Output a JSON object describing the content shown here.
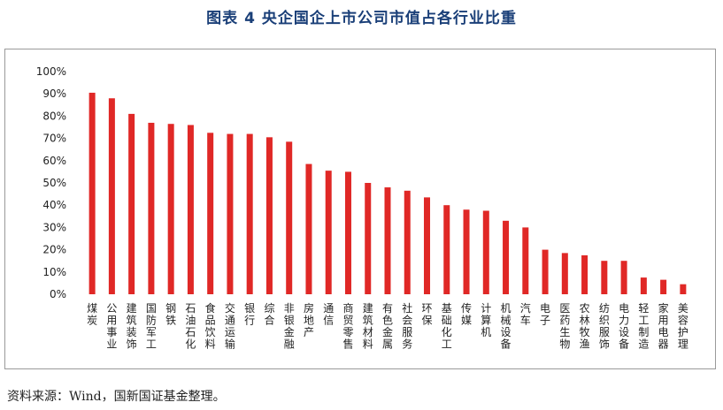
{
  "title": "图表 4  央企国企上市公司市值占各行业比重",
  "source": "资料来源：Wind，国新国证基金整理。",
  "colors": {
    "bar": "#e02826",
    "title": "#1a3f78"
  },
  "chart_data": {
    "type": "bar",
    "title": "图表 4  央企国企上市公司市值占各行业比重",
    "xlabel": "",
    "ylabel": "",
    "ylim": [
      0,
      100
    ],
    "yticks": [
      "0%",
      "10%",
      "20%",
      "30%",
      "40%",
      "50%",
      "60%",
      "70%",
      "80%",
      "90%",
      "100%"
    ],
    "grid": false,
    "categories": [
      "煤炭",
      "公用事业",
      "建筑装饰",
      "国防军工",
      "钢铁",
      "石油石化",
      "食品饮料",
      "交通运输",
      "银行",
      "综合",
      "非银金融",
      "房地产",
      "通信",
      "商贸零售",
      "建筑材料",
      "有色金属",
      "社会服务",
      "环保",
      "基础化工",
      "传媒",
      "计算机",
      "机械设备",
      "汽车",
      "电子",
      "医药生物",
      "农林牧渔",
      "纺织服饰",
      "电力设备",
      "轻工制造",
      "家用电器",
      "美容护理"
    ],
    "values": [
      90.5,
      88,
      81,
      77,
      76.5,
      76,
      72.5,
      72,
      72,
      70.5,
      68.5,
      58.5,
      55.5,
      55,
      50,
      48,
      46.5,
      43.5,
      40,
      38,
      37.5,
      33,
      30,
      20,
      18.5,
      17.5,
      15,
      15,
      7.5,
      6.5,
      4.5
    ]
  }
}
